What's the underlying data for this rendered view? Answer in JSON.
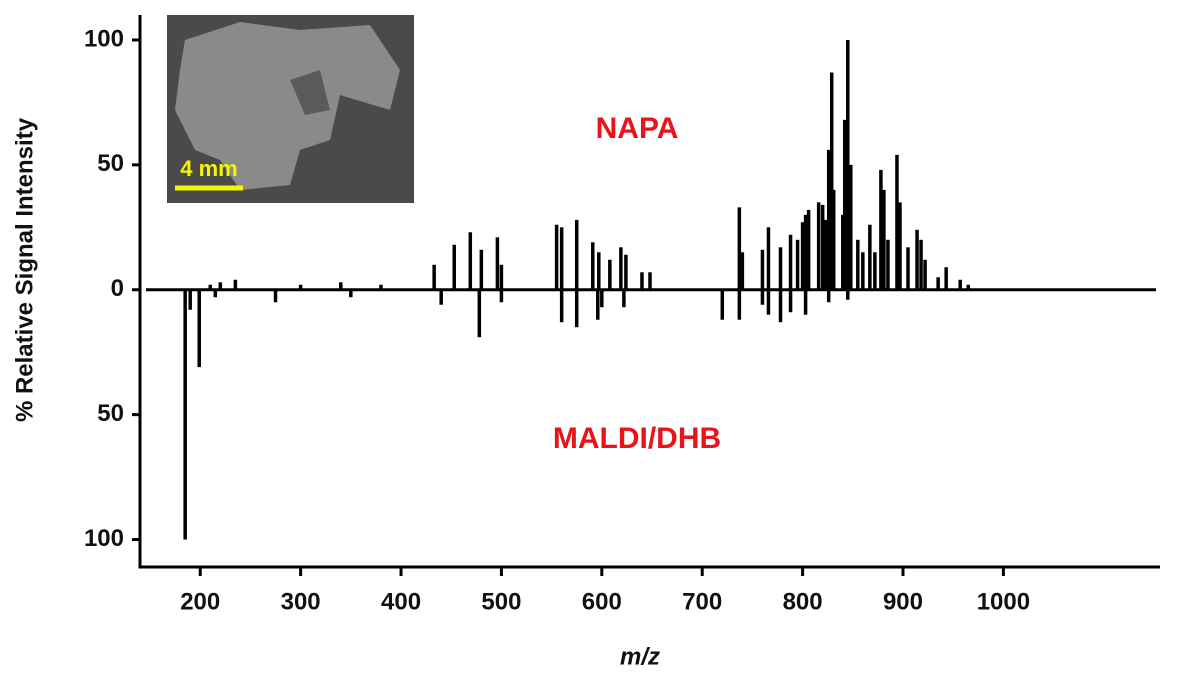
{
  "chart_data": {
    "type": "mirror-stick",
    "xlabel": "m/z",
    "ylabel": "% Relative Signal Intensity",
    "xlim": [
      140,
      1156
    ],
    "ylim": [
      -111,
      110
    ],
    "xticks": [
      200,
      300,
      400,
      500,
      600,
      700,
      800,
      900,
      1000
    ],
    "yticks": [
      100,
      50,
      0,
      {
        "value": -50,
        "label": "50"
      },
      {
        "value": -100,
        "label": "100"
      }
    ],
    "inset_scale_label": "4 mm",
    "series": [
      {
        "name": "NAPA",
        "color": "#000000",
        "x": [
          210,
          220,
          235,
          300,
          340,
          380,
          433,
          453,
          469,
          480,
          496,
          500,
          555,
          560,
          575,
          591,
          597,
          608,
          619,
          624,
          640,
          648,
          737,
          740,
          760,
          766,
          778,
          788,
          795,
          800,
          803,
          806,
          816,
          820,
          823,
          826,
          829,
          831,
          840,
          842,
          845,
          848,
          855,
          860,
          867,
          872,
          878,
          881,
          885,
          894,
          897,
          905,
          914,
          918,
          922,
          935,
          943,
          957,
          965
        ],
        "values": [
          2,
          3,
          4,
          2,
          3,
          2,
          10,
          18,
          23,
          16,
          21,
          10,
          26,
          25,
          28,
          19,
          15,
          12,
          17,
          14,
          7,
          7,
          33,
          15,
          16,
          25,
          17,
          22,
          20,
          27,
          30,
          32,
          35,
          34,
          28,
          56,
          87,
          40,
          30,
          68,
          100,
          50,
          20,
          15,
          26,
          15,
          48,
          40,
          20,
          54,
          35,
          17,
          24,
          20,
          12,
          5,
          9,
          4,
          2
        ]
      },
      {
        "name": "MALDI/DHB",
        "color": "#000000",
        "x": [
          185,
          190,
          199,
          215,
          275,
          350,
          440,
          478,
          500,
          560,
          575,
          596,
          600,
          622,
          720,
          737,
          760,
          766,
          778,
          788,
          803,
          826,
          845
        ],
        "values": [
          -100,
          -8,
          -31,
          -3,
          -5,
          -3,
          -6,
          -19,
          -5,
          -13,
          -15,
          -12,
          -7,
          -7,
          -12,
          -12,
          -6,
          -10,
          -13,
          -9,
          -10,
          -5,
          -4
        ]
      }
    ]
  }
}
